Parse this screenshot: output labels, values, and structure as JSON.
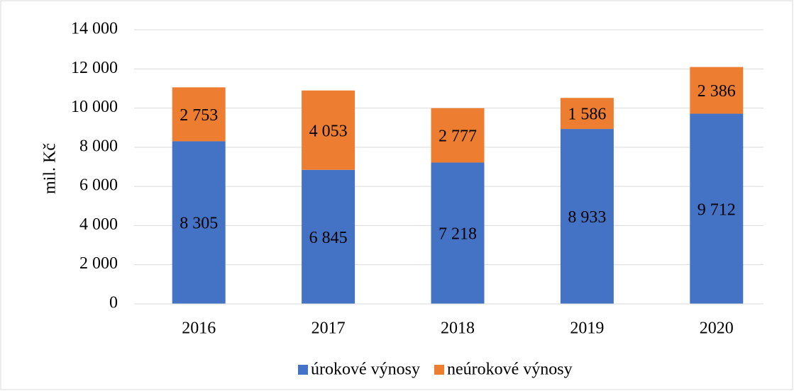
{
  "chart_data": {
    "type": "stacked_bar",
    "ylabel": "mil. Kč",
    "categories": [
      "2016",
      "2017",
      "2018",
      "2019",
      "2020"
    ],
    "series": [
      {
        "name": "úrokové výnosy",
        "color": "#4472c4",
        "values": [
          8305,
          6845,
          7218,
          8933,
          9712
        ],
        "value_labels": [
          "8 305",
          "6 845",
          "7 218",
          "8 933",
          "9 712"
        ]
      },
      {
        "name": "neúrokové výnosy",
        "color": "#ed7d31",
        "values": [
          2753,
          4053,
          2777,
          1586,
          2386
        ],
        "value_labels": [
          "2 753",
          "4 053",
          "2 777",
          "1 586",
          "2 386"
        ]
      }
    ],
    "ylim": [
      0,
      14000
    ],
    "yticks": [
      0,
      {
        "value": 2000,
        "label": "2 000"
      },
      {
        "value": 4000,
        "label": "4 000"
      },
      {
        "value": 6000,
        "label": "6 000"
      },
      {
        "value": 8000,
        "label": "8 000"
      },
      {
        "value": 10000,
        "label": "10 000"
      },
      {
        "value": 12000,
        "label": "12 000"
      },
      {
        "value": 14000,
        "label": "14 000"
      }
    ],
    "grid": true,
    "legend": "bottom"
  }
}
